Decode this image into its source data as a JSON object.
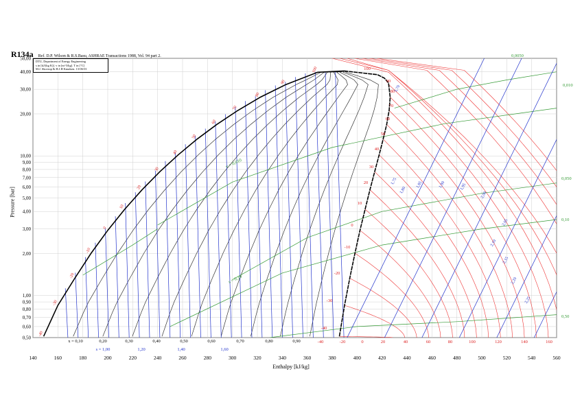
{
  "chart_data": {
    "type": "line",
    "title": "R134a",
    "reference": "Ref. D.P. Wilson & R.S.Basu, ASHRAE Transactions 1988, Vol. 94 part 2.",
    "info_lines": [
      "DTU, Department of Energy Engineering",
      "s in [kJ/(kg K)]. v in [m^3/kg]. T in [°C]",
      "M.J. Skovrup & H.J.H Knudsen. 13-06-01"
    ],
    "xlabel": "Enthalpy [kJ/kg]",
    "ylabel": "Pressure [bar]",
    "xlim": [
      140,
      560
    ],
    "ylim": [
      0.5,
      50
    ],
    "y_scale": "log",
    "x_ticks": [
      "140",
      "160",
      "180",
      "200",
      "220",
      "240",
      "260",
      "280",
      "300",
      "320",
      "340",
      "360",
      "380",
      "400",
      "420",
      "440",
      "460",
      "480",
      "500",
      "520",
      "540",
      "560"
    ],
    "y_ticks": [
      "0,50",
      "0,60",
      "0,70",
      "0,80",
      "0,90",
      "1,00",
      "2,00",
      "3,00",
      "4,00",
      "5,00",
      "6,00",
      "7,00",
      "8,00",
      "9,00",
      "10,00",
      "20,00",
      "30,00",
      "40,00",
      "50,00"
    ],
    "y_tick_values": [
      0.5,
      0.6,
      0.7,
      0.8,
      0.9,
      1,
      2,
      3,
      4,
      5,
      6,
      7,
      8,
      9,
      10,
      20,
      30,
      40,
      50
    ],
    "quality_labels": [
      "x = 0,10",
      "0,20",
      "0,30",
      "0,40",
      "0,50",
      "0,60",
      "0,70",
      "0,80",
      "0,90"
    ],
    "entropy_bottom_labels": [
      "s = 1,00",
      "1,20",
      "1,40",
      "1,60"
    ],
    "bottom_temp_labels": [
      "-40",
      "-20",
      "0",
      "20",
      "40",
      "60",
      "80",
      "100",
      "120",
      "140",
      "160"
    ],
    "liquid_temp_labels": [
      "-40",
      "-30",
      "-20",
      "-10",
      "0",
      "10",
      "20",
      "30",
      "40",
      "50",
      "60",
      "70",
      "80",
      "90",
      "100"
    ],
    "vapor_temp_labels": [
      "-40",
      "-30",
      "-20",
      "-10",
      "0",
      "10",
      "20",
      "30",
      "40",
      "50",
      "60",
      "70",
      "80",
      "90",
      "100"
    ],
    "entropy_vapor_labels": [
      "1,70",
      "1,75",
      "1,80",
      "1,85",
      "1,90",
      "1,95",
      "2,00",
      "2,05",
      "2,10",
      "2,15",
      "2,20",
      "2,25"
    ],
    "volume_labels": [
      "0,0050",
      "0,010",
      "0,050",
      "0,10",
      "0,50"
    ],
    "mid_labels": [
      "v = 0,010",
      "s = 0,10"
    ],
    "series": [
      {
        "name": "saturated liquid",
        "points": [
          [
            148.6,
            0.51
          ],
          [
            160,
            0.85
          ],
          [
            173.6,
            1.33
          ],
          [
            186.7,
            2.01
          ],
          [
            200,
            2.93
          ],
          [
            213.6,
            4.15
          ],
          [
            227.5,
            5.72
          ],
          [
            241.7,
            7.7
          ],
          [
            256.4,
            10.17
          ],
          [
            271.6,
            13.18
          ],
          [
            287.5,
            16.82
          ],
          [
            304.3,
            21.17
          ],
          [
            322.4,
            26.34
          ],
          [
            342.9,
            32.44
          ],
          [
            368.4,
            39.72
          ],
          [
            389.6,
            40.6
          ]
        ]
      },
      {
        "name": "saturated vapor",
        "points": [
          [
            389.6,
            40.6
          ],
          [
            416.3,
            38.2
          ],
          [
            422,
            36
          ],
          [
            425.2,
            33.3
          ],
          [
            426.5,
            26.3
          ],
          [
            425.7,
            21.2
          ],
          [
            423.7,
            16.8
          ],
          [
            420.9,
            13.2
          ],
          [
            417.7,
            10.2
          ],
          [
            414.1,
            7.7
          ],
          [
            410.3,
            5.72
          ],
          [
            406.4,
            4.15
          ],
          [
            402.3,
            2.93
          ],
          [
            398.3,
            2.01
          ],
          [
            394.1,
            1.33
          ],
          [
            389.9,
            0.85
          ],
          [
            385.8,
            0.51
          ]
        ]
      }
    ]
  }
}
